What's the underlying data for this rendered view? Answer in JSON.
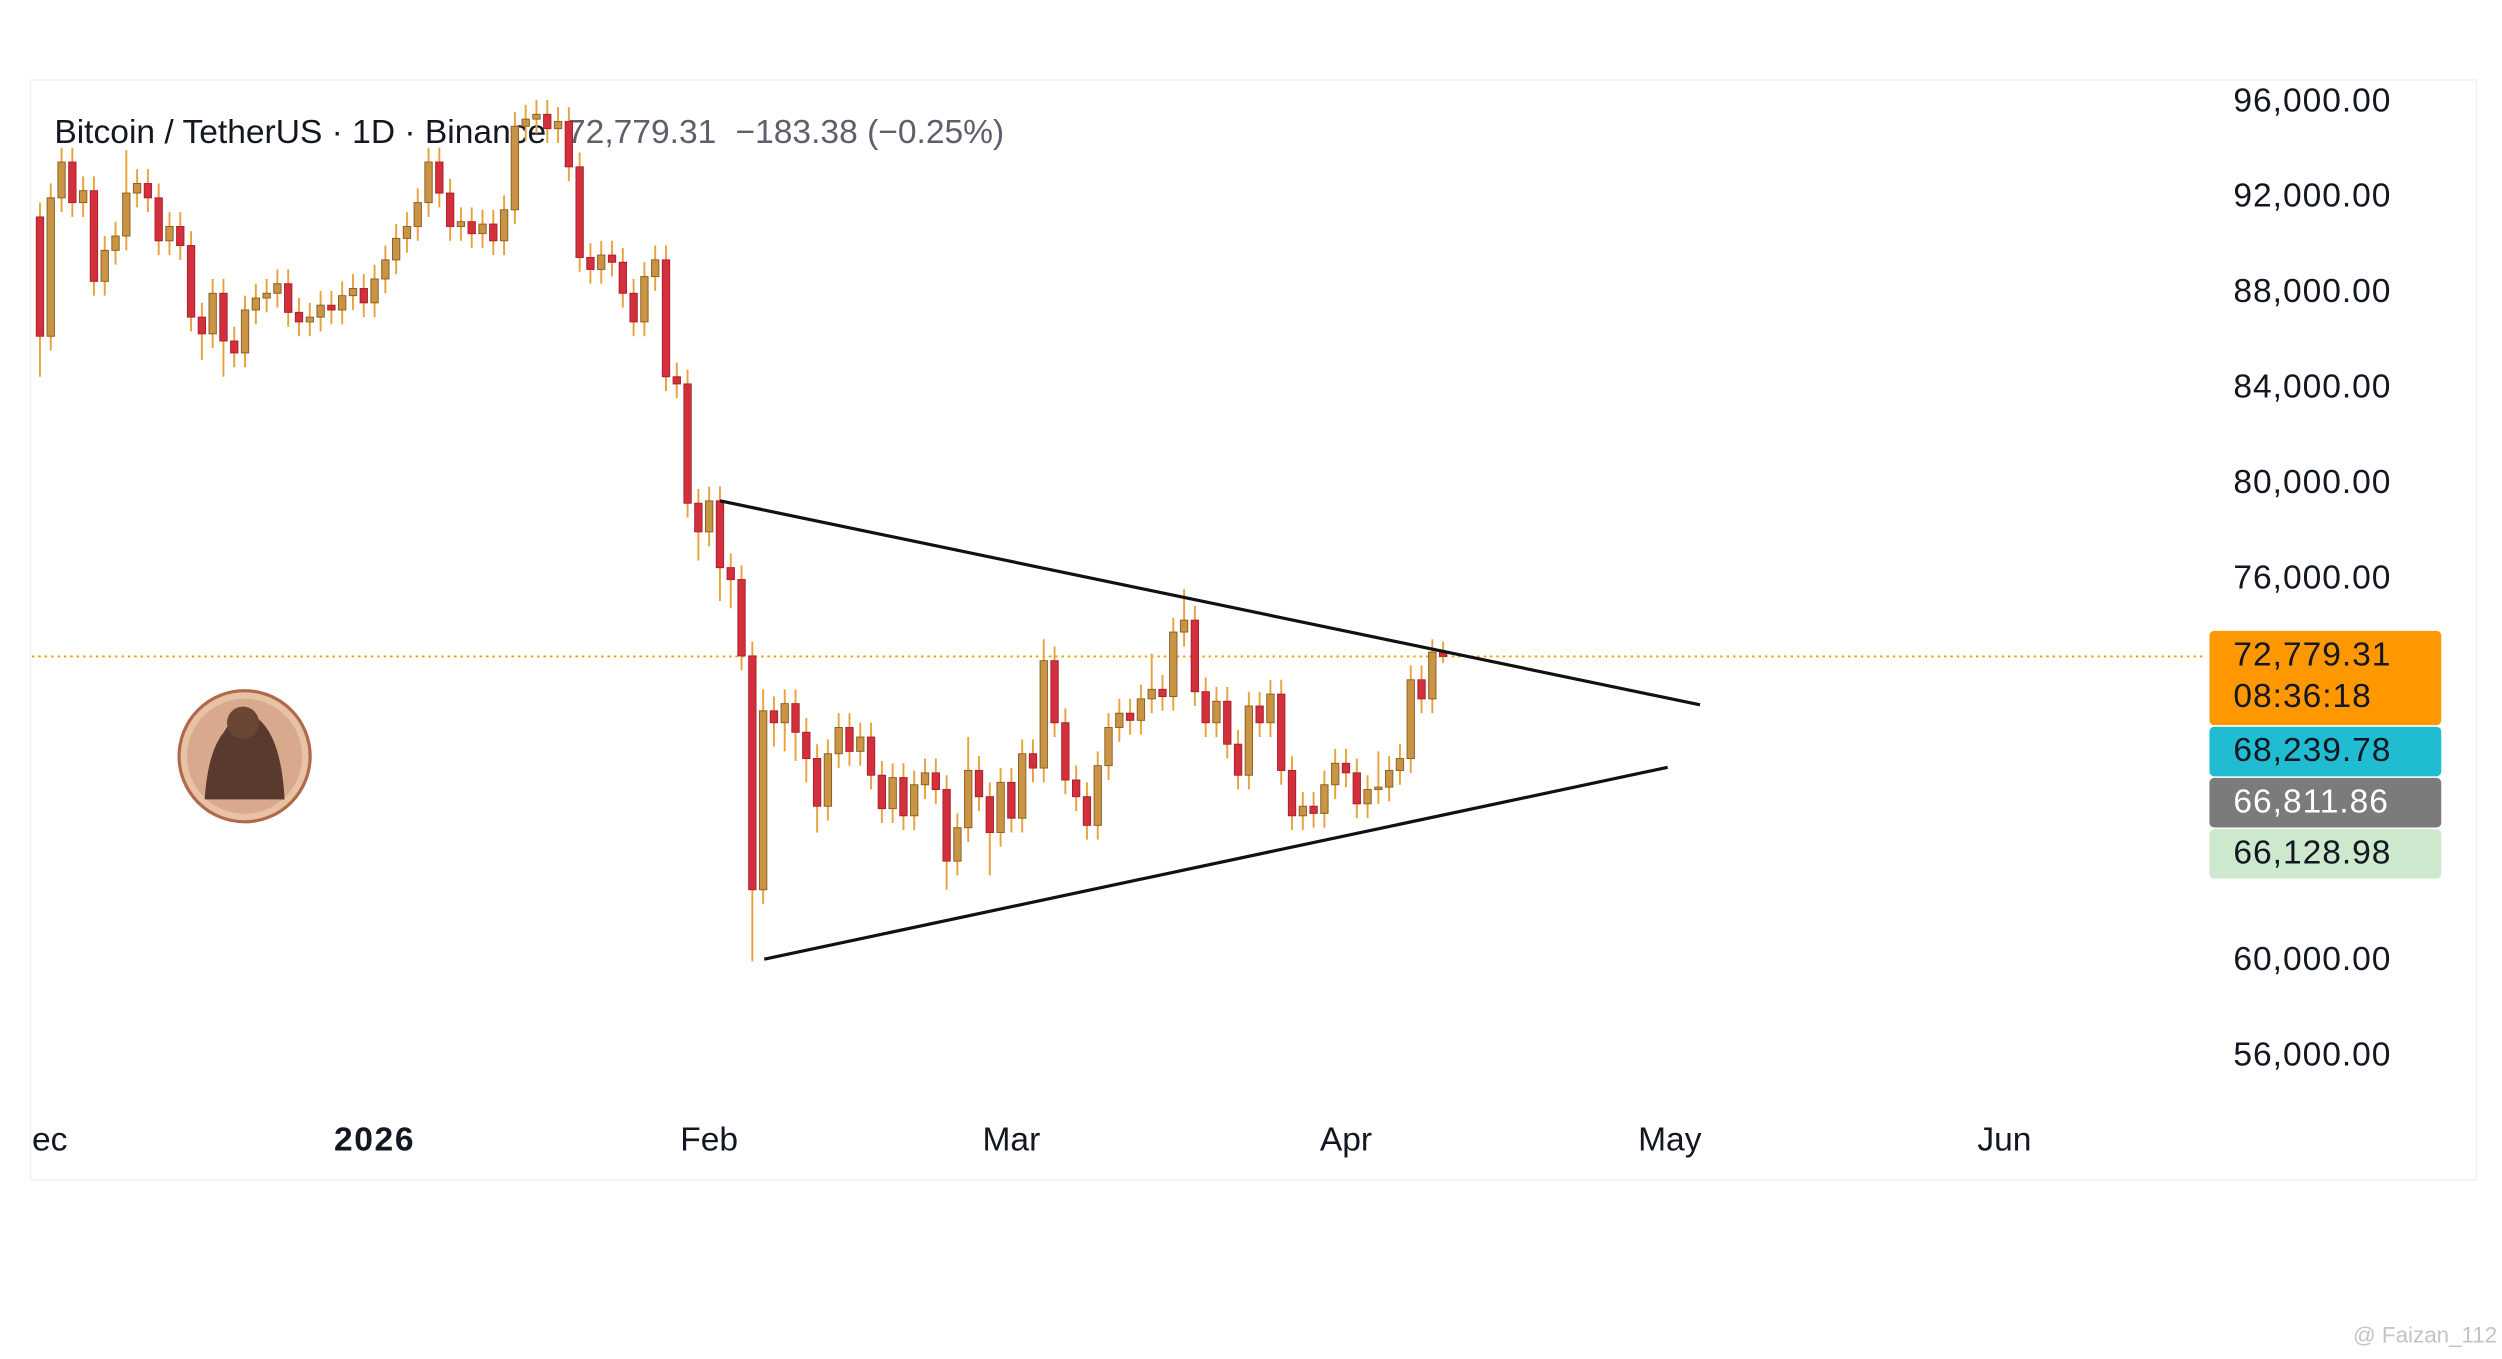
{
  "chart_data": {
    "type": "candlestick",
    "title": "Bitcoin / TetherUS · 1D · Binance",
    "price_text": "72,779.31",
    "change_text": "−183.38 (−0.25%)",
    "up_color": "#c99445",
    "down_color": "#d3303d",
    "wick_color": "#e9a23b",
    "open": [
      91200,
      86200,
      92000,
      93500,
      91800,
      92300,
      88500,
      89800,
      90400,
      92200,
      92600,
      92000,
      90200,
      90800,
      90000,
      87000,
      86300,
      88000,
      86000,
      85500,
      87300,
      87800,
      88000,
      88400,
      87200,
      86800,
      87000,
      87500,
      87300,
      87900,
      88200,
      87600,
      88600,
      89400,
      90300,
      90800,
      91800,
      93500,
      92200,
      90800,
      91000,
      90500,
      90900,
      90200,
      91500,
      95000,
      95300,
      95500,
      94900,
      95200,
      93300,
      89500,
      89000,
      89600,
      89300,
      88000,
      86800,
      88700,
      89400,
      84500,
      84200,
      79200,
      78000,
      79300,
      76500,
      76000,
      72800,
      63000,
      70500,
      70000,
      70800,
      69600,
      68500,
      66500,
      68700,
      69800,
      68800,
      69400,
      67800,
      66400,
      67700,
      66100,
      67400,
      67900,
      67200,
      64200,
      65600,
      68000,
      66900,
      65400,
      67500,
      66000,
      68700,
      68100,
      72600,
      70000,
      67600,
      66900,
      65700,
      68200,
      69800,
      70400,
      70100,
      71000,
      71400,
      71100,
      73800,
      74300,
      71300,
      70000,
      70900,
      69100,
      67800,
      70700,
      70000,
      71200,
      68000,
      66100,
      66500,
      66200,
      67400,
      68300,
      67900,
      66600,
      67200,
      67300,
      68000,
      68500,
      71800,
      71000,
      72962.69
    ],
    "high": [
      91800,
      92600,
      94100,
      94100,
      92900,
      92900,
      90400,
      91000,
      94000,
      93200,
      93200,
      92600,
      91400,
      91400,
      90600,
      87600,
      88600,
      88600,
      86600,
      87900,
      88400,
      88600,
      89000,
      89000,
      87800,
      87600,
      88100,
      88100,
      88500,
      88800,
      88800,
      89200,
      90000,
      90900,
      91400,
      92400,
      94100,
      94100,
      92800,
      91600,
      91600,
      91500,
      91500,
      92100,
      95600,
      95900,
      96100,
      96100,
      95800,
      95800,
      93900,
      90100,
      90200,
      90200,
      89900,
      88600,
      89300,
      90000,
      90000,
      85100,
      84800,
      79800,
      79900,
      79900,
      77100,
      76600,
      73400,
      71400,
      71100,
      71400,
      71400,
      70200,
      69100,
      69300,
      70400,
      70400,
      70000,
      70000,
      68400,
      68300,
      68300,
      68000,
      68500,
      68500,
      67800,
      66200,
      69400,
      68600,
      67500,
      68100,
      68100,
      69300,
      69300,
      73500,
      73200,
      70600,
      68200,
      67500,
      68800,
      70400,
      71000,
      71000,
      71600,
      72900,
      72000,
      74400,
      75600,
      74900,
      71900,
      71500,
      71500,
      69700,
      71300,
      71300,
      71800,
      71800,
      68600,
      67100,
      67100,
      68000,
      68900,
      68900,
      68500,
      67800,
      68800,
      68600,
      69100,
      72400,
      72400,
      73500,
      73400
    ],
    "low": [
      84500,
      85600,
      91400,
      91200,
      91200,
      87900,
      87900,
      89200,
      89800,
      91600,
      91400,
      89600,
      89600,
      89400,
      86400,
      85200,
      85700,
      84500,
      84900,
      84900,
      86700,
      87200,
      87400,
      86600,
      86200,
      86200,
      86400,
      86700,
      86700,
      87300,
      87000,
      87000,
      88000,
      88800,
      89700,
      90200,
      91200,
      91600,
      90200,
      90200,
      89900,
      89900,
      89600,
      89600,
      90900,
      94400,
      94700,
      94300,
      94300,
      92700,
      88900,
      88400,
      88400,
      88700,
      87400,
      86200,
      86200,
      88100,
      83900,
      83600,
      78600,
      76800,
      77400,
      75100,
      74800,
      72200,
      60000,
      62400,
      69000,
      68800,
      68400,
      67500,
      65400,
      65900,
      68100,
      68200,
      68200,
      67200,
      65800,
      65800,
      65500,
      65500,
      66800,
      66600,
      63000,
      63600,
      65000,
      66300,
      63600,
      64800,
      65400,
      65400,
      67500,
      67500,
      69400,
      67000,
      66300,
      65100,
      65100,
      67600,
      69200,
      69500,
      69500,
      70400,
      70500,
      70500,
      73200,
      70700,
      69400,
      69400,
      68500,
      67200,
      67200,
      69400,
      69400,
      67400,
      65500,
      65500,
      65600,
      65600,
      66800,
      67300,
      66000,
      66000,
      66600,
      66700,
      67400,
      67900,
      70400,
      70400,
      72500
    ],
    "close": [
      86200,
      92000,
      93500,
      91800,
      92300,
      88500,
      89800,
      90400,
      92200,
      92600,
      92000,
      90200,
      90800,
      90000,
      87000,
      86300,
      88000,
      86000,
      85500,
      87300,
      87800,
      88000,
      88400,
      87200,
      86800,
      87000,
      87500,
      87300,
      87900,
      88200,
      87600,
      88600,
      89400,
      90300,
      90800,
      91800,
      93500,
      92200,
      90800,
      91000,
      90500,
      90900,
      90200,
      91500,
      95000,
      95300,
      95500,
      94900,
      95200,
      93300,
      89500,
      89000,
      89600,
      89300,
      88000,
      86800,
      88700,
      89400,
      84500,
      84200,
      79200,
      78000,
      79300,
      76500,
      76000,
      72800,
      63000,
      70500,
      70000,
      70800,
      69600,
      68500,
      66500,
      68700,
      69800,
      68800,
      69400,
      67800,
      66400,
      67700,
      66100,
      67400,
      67900,
      67200,
      64200,
      65600,
      68000,
      66900,
      65400,
      67500,
      66000,
      68700,
      68100,
      72600,
      70000,
      67600,
      66900,
      65700,
      68200,
      69800,
      70400,
      70100,
      71000,
      71400,
      71100,
      73800,
      74300,
      71300,
      70000,
      70900,
      69100,
      67800,
      70700,
      70000,
      71200,
      68000,
      66100,
      66500,
      66200,
      67400,
      68300,
      67900,
      66600,
      67200,
      67300,
      68000,
      68500,
      71800,
      71000,
      72962.69,
      72779.31
    ],
    "xlim": [
      -0.74,
      200.7
    ],
    "xticks": [
      {
        "value": 0,
        "label": "ec"
      },
      {
        "value": 31,
        "label": "2026"
      },
      {
        "value": 62,
        "label": "Feb"
      },
      {
        "value": 90,
        "label": "Mar"
      },
      {
        "value": 121,
        "label": "Apr"
      },
      {
        "value": 151,
        "label": "May"
      },
      {
        "value": 182,
        "label": "Jun"
      }
    ],
    "ylim": [
      53720,
      96940
    ],
    "yticks": [
      {
        "value": 96000,
        "label": "96,000.00"
      },
      {
        "value": 92000,
        "label": "92,000.00"
      },
      {
        "value": 88000,
        "label": "88,000.00"
      },
      {
        "value": 84000,
        "label": "84,000.00"
      },
      {
        "value": 80000,
        "label": "80,000.00"
      },
      {
        "value": 76000,
        "label": "76,000.00"
      },
      {
        "value": 60000,
        "label": "60,000.00"
      },
      {
        "value": 56000,
        "label": "56,000.00"
      }
    ],
    "trendlines": [
      {
        "x": [
          63,
          153.8
        ],
        "y": [
          79300,
          70750
        ]
      },
      {
        "x": [
          67.1,
          150.8
        ],
        "y": [
          60090,
          68130
        ]
      }
    ],
    "price_badges": [
      {
        "value": 72779.31,
        "label": "72,779.31",
        "sublabel": "08:36:18",
        "color": "#ff9800",
        "text_color": "#131722"
      },
      {
        "value": 68239.78,
        "label": "68,239.78",
        "color": "#1fbcd2",
        "text_color": "#131722"
      },
      {
        "value": 66811.86,
        "label": "66,811.86",
        "color": "#7b7b7b",
        "text_color": "#ffffff"
      },
      {
        "value": 66128.98,
        "label": "66,128.98",
        "color": "#cde8cd",
        "text_color": "#131722"
      }
    ],
    "watermark": "@ Faizan_112"
  }
}
